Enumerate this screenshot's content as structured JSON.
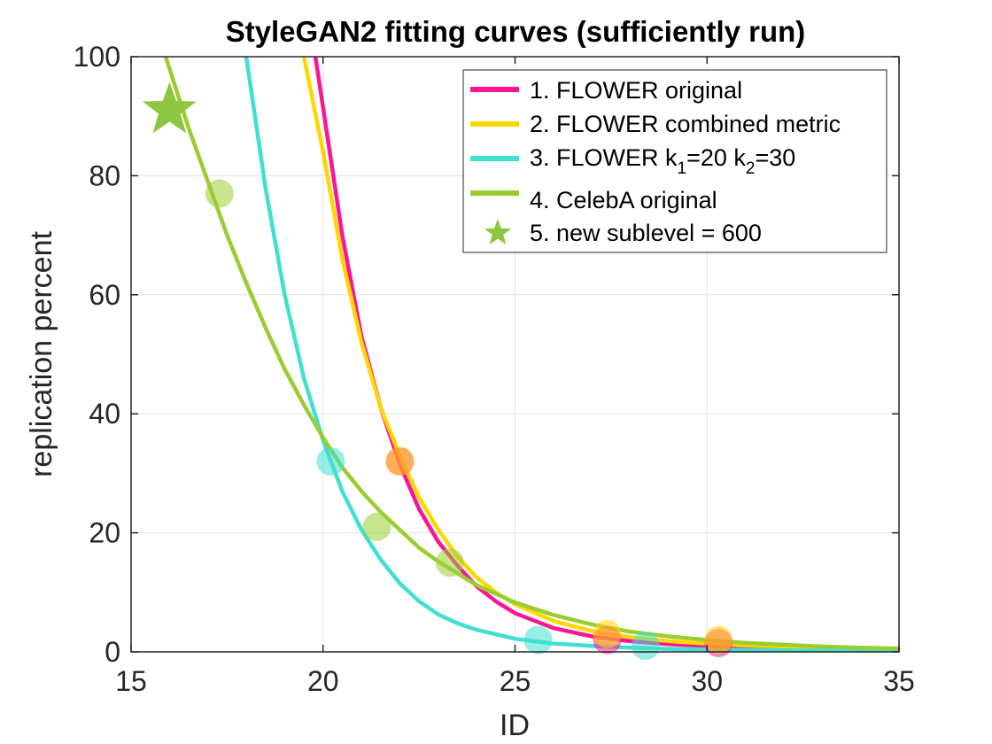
{
  "chart_data": {
    "type": "line",
    "title": "StyleGAN2 fitting curves (sufficiently run)",
    "xlabel": "ID",
    "ylabel": "replication percent",
    "xlim": [
      15,
      35
    ],
    "ylim": [
      0,
      100
    ],
    "xticks": [
      15,
      20,
      25,
      30,
      35
    ],
    "yticks": [
      0,
      20,
      40,
      60,
      80,
      100
    ],
    "grid": true,
    "legend_position": "top-right",
    "series": [
      {
        "name": "1. FLOWER original",
        "legend_main": "1. FLOWER original",
        "color": "#ff1493",
        "curve": {
          "x": [
            19.8,
            20.5,
            21.0,
            21.5,
            22.0,
            22.5,
            23.0,
            23.5,
            24.0,
            24.5,
            25.0,
            26.0,
            27.0,
            28.0,
            29.0,
            30.0,
            31.0,
            32.0,
            33.0,
            34.0,
            35.0
          ],
          "y": [
            100,
            70,
            53,
            41,
            31.5,
            24,
            18.5,
            14.5,
            11,
            8.5,
            6.5,
            4.0,
            2.6,
            1.8,
            1.3,
            1.0,
            0.8,
            0.6,
            0.5,
            0.4,
            0.3
          ]
        },
        "points": {
          "x": [
            22.0,
            27.4,
            30.3
          ],
          "y": [
            32,
            2,
            1.5
          ]
        }
      },
      {
        "name": "2. FLOWER combined metric",
        "legend_main": "2. FLOWER combined metric",
        "color": "#ffd700",
        "curve": {
          "x": [
            19.5,
            20.0,
            20.5,
            21.0,
            21.5,
            22.0,
            22.5,
            23.0,
            23.5,
            24.0,
            24.5,
            25.0,
            26.0,
            27.0,
            28.0,
            29.0,
            30.0,
            31.0,
            32.0,
            33.0,
            34.0,
            35.0
          ],
          "y": [
            100,
            84,
            66,
            52,
            41,
            33,
            26,
            20.5,
            16,
            12.5,
            10,
            8,
            5.2,
            3.5,
            2.5,
            1.8,
            1.4,
            1.1,
            0.9,
            0.7,
            0.55,
            0.45
          ]
        },
        "points": {
          "x": [
            22.0,
            27.4,
            30.3
          ],
          "y": [
            32,
            3,
            2
          ]
        }
      },
      {
        "name": "3. FLOWER k1=20 k2=30",
        "legend_main": "3. FLOWER k",
        "legend_sub1": "1",
        "legend_mid": "=20 k",
        "legend_sub2": "2",
        "legend_end": "=30",
        "color": "#40e0d0",
        "curve": {
          "x": [
            18.0,
            18.5,
            19.0,
            19.5,
            20.0,
            20.5,
            21.0,
            21.5,
            22.0,
            22.5,
            23.0,
            23.5,
            24.0,
            25.0,
            26.0,
            27.0,
            28.0,
            29.0,
            30.0,
            32.0,
            35.0
          ],
          "y": [
            100,
            78,
            60,
            46,
            35.5,
            27,
            20.5,
            15.5,
            11.5,
            8.5,
            6.3,
            4.8,
            3.7,
            2.2,
            1.4,
            1.0,
            0.7,
            0.5,
            0.4,
            0.25,
            0.1
          ]
        },
        "points": {
          "x": [
            20.2,
            25.6,
            28.4
          ],
          "y": [
            32,
            2,
            1
          ]
        }
      },
      {
        "name": "4. CelebA original",
        "legend_main": "4. CelebA original",
        "color": "#9acd32",
        "curve": {
          "x": [
            15.9,
            16.5,
            17.0,
            17.5,
            18.0,
            18.5,
            19.0,
            19.5,
            20.0,
            20.5,
            21.0,
            21.5,
            22.0,
            22.5,
            23.0,
            24.0,
            25.0,
            26.0,
            27.0,
            28.0,
            29.0,
            30.0,
            31.0,
            32.0,
            33.0,
            34.0,
            35.0
          ],
          "y": [
            100,
            88,
            79,
            70,
            62,
            54.5,
            47.5,
            41.5,
            36,
            31,
            27,
            23.5,
            20.5,
            17.5,
            15.2,
            11.2,
            8.3,
            6.2,
            4.6,
            3.4,
            2.6,
            2.0,
            1.5,
            1.2,
            0.9,
            0.7,
            0.55
          ]
        },
        "points": {
          "x": [
            17.3,
            21.4,
            23.3
          ],
          "y": [
            77,
            21,
            15
          ]
        }
      },
      {
        "name": "5.  new sublevel = 600",
        "legend_main": "5.  new sublevel = 600",
        "color": "#8dc63f",
        "marker": "star",
        "points": {
          "x": [
            16.0
          ],
          "y": [
            91
          ]
        }
      }
    ]
  }
}
